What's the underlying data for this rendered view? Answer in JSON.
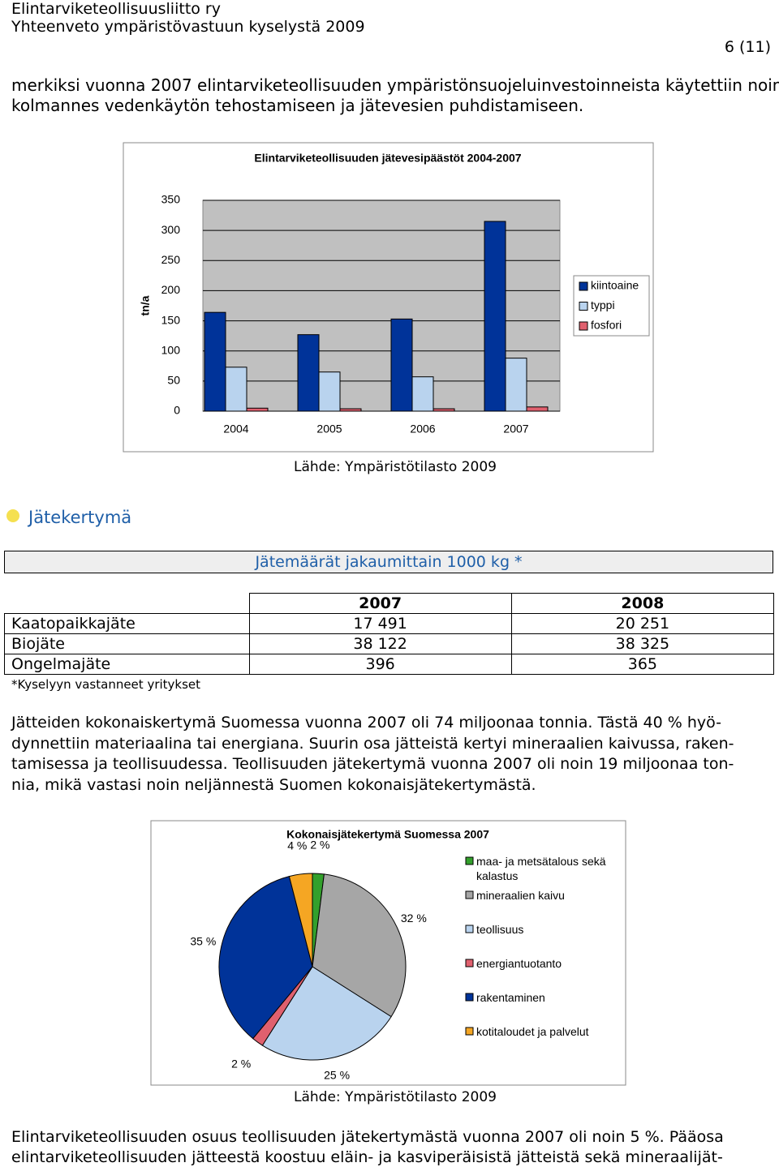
{
  "header": {
    "organization": "Elintarviketeollisuusliitto ry",
    "document": "Yhteenveto ympäristövastuun kyselystä 2009",
    "page": "6 (11)"
  },
  "paragraphs": [
    [
      "merkiksi vuonna 2007 elintarviketeollisuuden ympäristönsuojeluinvestoinneista käytettiin noin",
      "kolmannes vedenkäytön tehostamiseen ja jätevesien puhdistamiseen."
    ],
    [
      "Jätteiden kokonaiskertymä Suomessa vuonna 2007 oli 74 miljoonaa tonnia. Tästä 40 % hyö-",
      "dynnettiin materiaalina tai energiana. Suurin osa jätteistä kertyi mineraalien kaivussa, raken-",
      "tamisessa ja teollisuudessa. Teollisuuden jätekertymä vuonna 2007 oli noin 19 miljoonaa ton-",
      "nia, mikä vastasi noin neljännestä Suomen kokonaisjätekertymästä."
    ],
    [
      "Elintarviketeollisuuden osuus teollisuuden jätekertymästä vuonna 2007 oli noin 5 %. Pääosa",
      "elintarviketeollisuuden jätteestä koostuu eläin- ja kasviperäisistä jätteistä sekä mineraalijät-"
    ]
  ],
  "section_heading": "Jätekertymä",
  "table": {
    "title": "Jätemäärät jakaumittain 1000 kg *",
    "columns": [
      "2007",
      "2008"
    ],
    "rows": [
      [
        "Kaatopaikkajäte",
        "17 491",
        "20 251"
      ],
      [
        "Biojäte",
        "38 122",
        "38 325"
      ],
      [
        "Ongelmajäte",
        "396",
        "365"
      ]
    ],
    "footnote": "*Kyselyyn vastanneet yritykset"
  },
  "chart_data": [
    {
      "type": "bar",
      "title": "Elintarviketeollisuuden jätevesipäästöt 2004-2007",
      "y_label": "tn/a",
      "categories": [
        "2004",
        "2005",
        "2006",
        "2007"
      ],
      "series": [
        {
          "name": "kiintoaine",
          "color": "#003399",
          "values": [
            164,
            127,
            153,
            315
          ]
        },
        {
          "name": "typpi",
          "color": "#b9d3ee",
          "values": [
            73,
            65,
            57,
            88
          ]
        },
        {
          "name": "fosfori",
          "color": "#e0606e",
          "values": [
            5,
            4,
            4,
            7
          ]
        }
      ],
      "ylim": [
        0,
        350
      ],
      "yticks": [
        0,
        50,
        100,
        150,
        200,
        250,
        300,
        350
      ],
      "grid": true,
      "legend": "right",
      "source": "Lähde: Ympäristötilasto 2009"
    },
    {
      "type": "pie",
      "title": "Kokonaisjätekertymä Suomessa 2007",
      "categories": [
        "maa- ja metsätalous sekä kalastus",
        "mineraalien kaivu",
        "teollisuus",
        "energiantuotanto",
        "rakentaminen",
        "kotitaloudet ja palvelut"
      ],
      "values": [
        2,
        32,
        25,
        2,
        35,
        4
      ],
      "value_labels": [
        "2 %",
        "32 %",
        "25 %",
        "2 %",
        "35 %",
        "4 %"
      ],
      "colors": [
        "#33a02c",
        "#a6a6a6",
        "#b9d3ee",
        "#e0606e",
        "#003399",
        "#f5a623"
      ],
      "legend": "right",
      "source": "Lähde: Ympäristötilasto 2009"
    }
  ]
}
